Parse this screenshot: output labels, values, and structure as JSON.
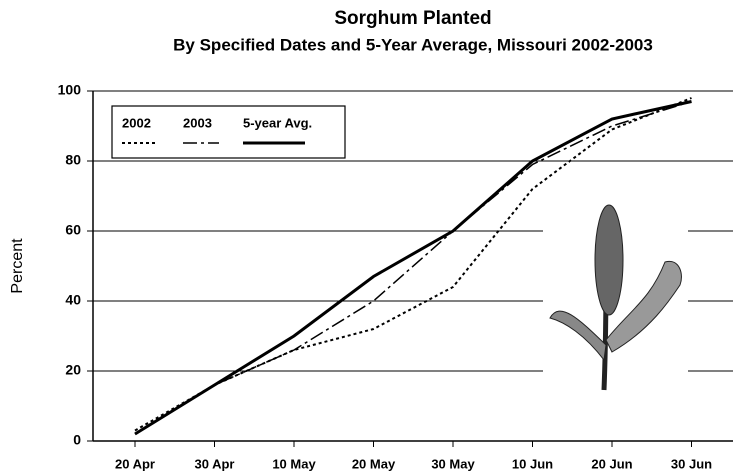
{
  "chart_data": {
    "type": "line",
    "title": "Sorghum Planted",
    "subtitle": "By Specified Dates and 5-Year Average, Missouri 2002-2003",
    "y_label": "Percent",
    "categories": [
      "20 Apr",
      "30 Apr",
      "10 May",
      "20 May",
      "30 May",
      "10 Jun",
      "20 Jun",
      "30 Jun"
    ],
    "series": [
      {
        "name": "2002",
        "color": "#000000",
        "style": "dotted",
        "values": [
          3,
          16,
          26,
          32,
          44,
          72,
          89,
          98
        ]
      },
      {
        "name": "2003",
        "color": "#000000",
        "style": "dashdot",
        "values": [
          2,
          16,
          26,
          40,
          60,
          79,
          90,
          97
        ]
      },
      {
        "name": "5-year Avg.",
        "color": "#000000",
        "style": "solid",
        "values": [
          2,
          16,
          30,
          47,
          60,
          80,
          92,
          97
        ]
      }
    ],
    "ylim": [
      0,
      100
    ],
    "yticks": [
      0,
      20,
      40,
      60,
      80,
      100
    ],
    "grid": true,
    "legend": "upper left"
  }
}
